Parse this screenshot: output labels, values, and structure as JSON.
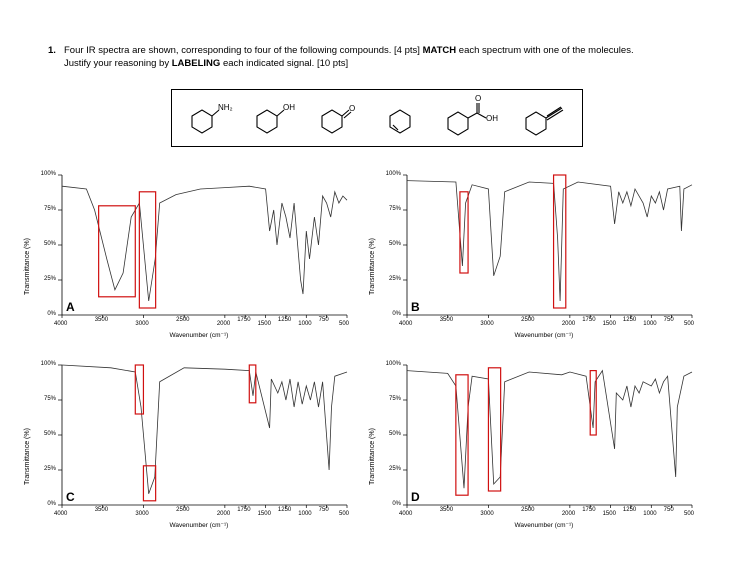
{
  "question": {
    "number": "1.",
    "line1_a": "Four IR spectra are shown, corresponding to four of the following compounds. [4 pts]",
    "line1_b": "MATCH",
    "line1_c": "each spectrum with one of the molecules.",
    "line2_a": "Justify your reasoning by",
    "line2_b": "LABELING",
    "line2_c": "each indicated signal. [10 pts]"
  },
  "molecules": {
    "amine_label": "NH₂",
    "alcohol_label": "OH",
    "ketone_label": "O",
    "acid_carbonyl_label": "O",
    "acid_oh_label": "OH"
  },
  "axes": {
    "ylabel": "Transmittance (%)",
    "xlabel": "Wavenumber (cm⁻¹)",
    "y_ticks": [
      "100%",
      "75%",
      "50%",
      "25%",
      "0%"
    ],
    "x_ticks": [
      "4000",
      "3500",
      "3000",
      "2500",
      "2000",
      "1750",
      "1500",
      "1250",
      "1000",
      "750",
      "500"
    ]
  },
  "chart_data": [
    {
      "type": "line",
      "label": "A",
      "x_range": [
        4000,
        500
      ],
      "ylim": [
        0,
        100
      ],
      "points": [
        [
          4000,
          92
        ],
        [
          3700,
          90
        ],
        [
          3600,
          75
        ],
        [
          3450,
          40
        ],
        [
          3350,
          18
        ],
        [
          3250,
          30
        ],
        [
          3150,
          70
        ],
        [
          3050,
          80
        ],
        [
          2935,
          10
        ],
        [
          2855,
          40
        ],
        [
          2800,
          80
        ],
        [
          2600,
          86
        ],
        [
          2300,
          90
        ],
        [
          2000,
          91
        ],
        [
          1700,
          92
        ],
        [
          1500,
          90
        ],
        [
          1450,
          60
        ],
        [
          1400,
          75
        ],
        [
          1360,
          50
        ],
        [
          1300,
          80
        ],
        [
          1250,
          70
        ],
        [
          1200,
          55
        ],
        [
          1150,
          80
        ],
        [
          1070,
          25
        ],
        [
          1040,
          15
        ],
        [
          1000,
          60
        ],
        [
          960,
          40
        ],
        [
          900,
          70
        ],
        [
          850,
          50
        ],
        [
          800,
          85
        ],
        [
          750,
          80
        ],
        [
          700,
          70
        ],
        [
          650,
          88
        ],
        [
          600,
          80
        ],
        [
          550,
          85
        ],
        [
          500,
          82
        ]
      ],
      "highlight_boxes": [
        [
          3550,
          3100
        ],
        [
          3050,
          2850
        ]
      ]
    },
    {
      "type": "line",
      "label": "B",
      "x_range": [
        4000,
        500
      ],
      "ylim": [
        0,
        100
      ],
      "points": [
        [
          4000,
          96
        ],
        [
          3400,
          95
        ],
        [
          3320,
          35
        ],
        [
          3280,
          80
        ],
        [
          3200,
          93
        ],
        [
          3000,
          90
        ],
        [
          2935,
          28
        ],
        [
          2855,
          42
        ],
        [
          2800,
          88
        ],
        [
          2500,
          95
        ],
        [
          2200,
          94
        ],
        [
          2150,
          55
        ],
        [
          2120,
          10
        ],
        [
          2080,
          90
        ],
        [
          1900,
          95
        ],
        [
          1500,
          92
        ],
        [
          1450,
          65
        ],
        [
          1400,
          88
        ],
        [
          1350,
          80
        ],
        [
          1300,
          88
        ],
        [
          1250,
          78
        ],
        [
          1200,
          90
        ],
        [
          1100,
          80
        ],
        [
          1050,
          70
        ],
        [
          1000,
          85
        ],
        [
          950,
          80
        ],
        [
          900,
          88
        ],
        [
          850,
          75
        ],
        [
          800,
          90
        ],
        [
          650,
          92
        ],
        [
          630,
          60
        ],
        [
          600,
          90
        ],
        [
          500,
          93
        ]
      ],
      "highlight_boxes": [
        [
          3350,
          3250
        ],
        [
          2200,
          2050
        ]
      ]
    },
    {
      "type": "line",
      "label": "C",
      "x_range": [
        4000,
        500
      ],
      "ylim": [
        0,
        100
      ],
      "points": [
        [
          4000,
          100
        ],
        [
          3400,
          98
        ],
        [
          3100,
          95
        ],
        [
          3030,
          70
        ],
        [
          2935,
          8
        ],
        [
          2860,
          20
        ],
        [
          2800,
          88
        ],
        [
          2500,
          98
        ],
        [
          2000,
          97
        ],
        [
          1700,
          96
        ],
        [
          1655,
          78
        ],
        [
          1620,
          95
        ],
        [
          1450,
          55
        ],
        [
          1430,
          90
        ],
        [
          1350,
          80
        ],
        [
          1300,
          88
        ],
        [
          1250,
          75
        ],
        [
          1200,
          90
        ],
        [
          1150,
          70
        ],
        [
          1100,
          88
        ],
        [
          1050,
          72
        ],
        [
          1000,
          85
        ],
        [
          950,
          75
        ],
        [
          900,
          88
        ],
        [
          850,
          70
        ],
        [
          800,
          88
        ],
        [
          720,
          25
        ],
        [
          690,
          70
        ],
        [
          650,
          92
        ],
        [
          500,
          95
        ]
      ],
      "highlight_boxes": [
        [
          3100,
          3000
        ],
        [
          3000,
          2850
        ],
        [
          1700,
          1620
        ]
      ]
    },
    {
      "type": "line",
      "label": "D",
      "x_range": [
        4000,
        500
      ],
      "ylim": [
        0,
        100
      ],
      "points": [
        [
          4000,
          96
        ],
        [
          3500,
          94
        ],
        [
          3400,
          85
        ],
        [
          3300,
          12
        ],
        [
          3250,
          70
        ],
        [
          3200,
          92
        ],
        [
          3000,
          90
        ],
        [
          2935,
          15
        ],
        [
          2855,
          20
        ],
        [
          2800,
          88
        ],
        [
          2500,
          95
        ],
        [
          2100,
          93
        ],
        [
          2000,
          95
        ],
        [
          1800,
          92
        ],
        [
          1715,
          55
        ],
        [
          1690,
          88
        ],
        [
          1600,
          96
        ],
        [
          1450,
          40
        ],
        [
          1430,
          80
        ],
        [
          1350,
          75
        ],
        [
          1300,
          85
        ],
        [
          1250,
          70
        ],
        [
          1200,
          85
        ],
        [
          1150,
          80
        ],
        [
          1100,
          88
        ],
        [
          1000,
          85
        ],
        [
          950,
          90
        ],
        [
          900,
          80
        ],
        [
          850,
          88
        ],
        [
          800,
          92
        ],
        [
          700,
          20
        ],
        [
          680,
          70
        ],
        [
          600,
          92
        ],
        [
          500,
          95
        ]
      ],
      "highlight_boxes": [
        [
          3400,
          3250
        ],
        [
          3000,
          2850
        ],
        [
          1750,
          1680
        ]
      ]
    }
  ]
}
